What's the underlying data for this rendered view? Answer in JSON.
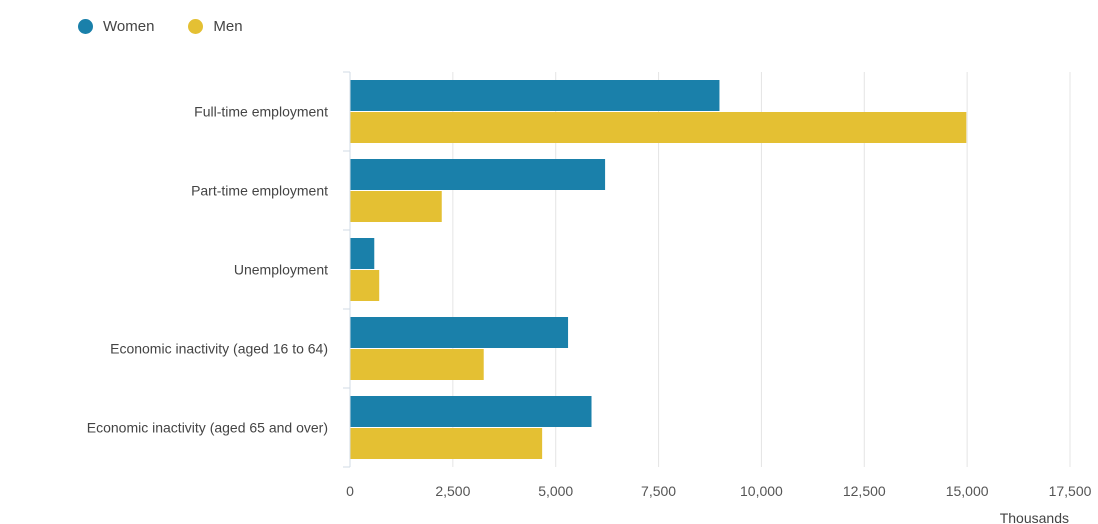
{
  "legend": [
    {
      "name": "Women",
      "color": "#1a80aa"
    },
    {
      "name": "Men",
      "color": "#e4c033"
    }
  ],
  "chart_data": {
    "type": "bar",
    "orientation": "horizontal",
    "categories": [
      "Full-time employment",
      "Part-time employment",
      "Unemployment",
      "Economic inactivity (aged 16 to 64)",
      "Economic inactivity (aged 65 and over)"
    ],
    "series": [
      {
        "name": "Women",
        "color": "#1a80aa",
        "values": [
          8980,
          6200,
          590,
          5300,
          5870
        ]
      },
      {
        "name": "Men",
        "color": "#e4c033",
        "values": [
          14980,
          2230,
          710,
          3250,
          4670
        ]
      }
    ],
    "xlim": [
      0,
      17500
    ],
    "xticks": [
      0,
      2500,
      5000,
      7500,
      10000,
      12500,
      15000,
      17500
    ],
    "xtick_labels": [
      "0",
      "2,500",
      "5,000",
      "7,500",
      "10,000",
      "12,500",
      "15,000",
      "17,500"
    ],
    "xlabel": "Thousands",
    "grid": true,
    "legend_position": "top-left"
  }
}
